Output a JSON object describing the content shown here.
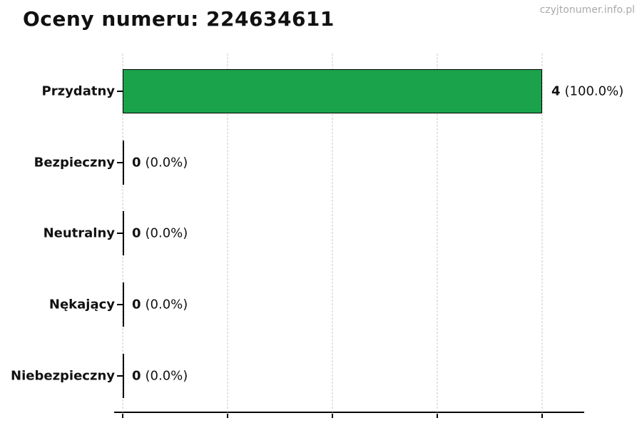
{
  "page": {
    "title": "Oceny numeru: 224634611",
    "watermark": "czyjtonumer.info.pl"
  },
  "chart_data": {
    "type": "bar",
    "orientation": "horizontal",
    "title": "Oceny numeru: 224634611",
    "categories": [
      "Przydatny",
      "Bezpieczny",
      "Neutralny",
      "Nękający",
      "Niebezpieczny"
    ],
    "values": [
      4,
      0,
      0,
      0,
      0
    ],
    "percentages": [
      100.0,
      0.0,
      0.0,
      0.0,
      0.0
    ],
    "rows": [
      {
        "label": "Przydatny",
        "value": 4,
        "count": "4",
        "pct": "(100.0%)"
      },
      {
        "label": "Bezpieczny",
        "value": 0,
        "count": "0",
        "pct": "(0.0%)"
      },
      {
        "label": "Neutralny",
        "value": 0,
        "count": "0",
        "pct": "(0.0%)"
      },
      {
        "label": "Nękający",
        "value": 0,
        "count": "0",
        "pct": "(0.0%)"
      },
      {
        "label": "Niebezpieczny",
        "value": 0,
        "count": "0",
        "pct": "(0.0%)"
      }
    ],
    "xlabel": "",
    "ylabel": "",
    "xlim": [
      0,
      4.4
    ],
    "xticks": [
      0,
      1,
      2,
      3,
      4
    ],
    "xtick_labels_visible": false,
    "grid": "vertical-dashed",
    "legend": "none",
    "bar_color": "#1aa34a",
    "bar_edge_color": "#000000",
    "grid_color": "#c9c9c9",
    "axis_color": "#000000",
    "watermark": "czyjtonumer.info.pl",
    "watermark_color": "#aaaaaa"
  }
}
